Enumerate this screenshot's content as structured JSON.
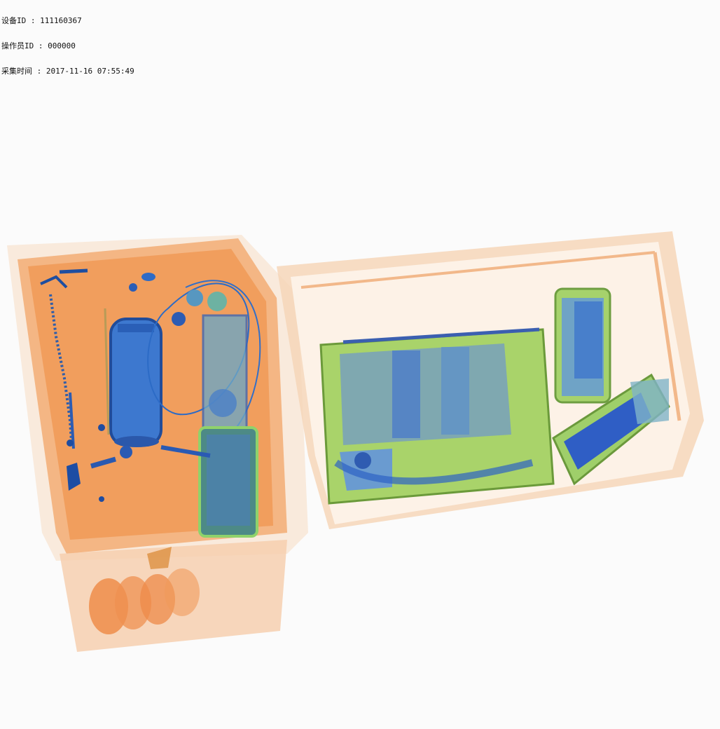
{
  "scanner": {
    "overlay": [
      {
        "label": "设备ID",
        "sep": " : ",
        "value": "111160367"
      },
      {
        "label": "操作员ID",
        "sep": " : ",
        "value": "000000"
      },
      {
        "label": "采集时间",
        "sep": " : ",
        "value": "2017-11-16 07:55:49"
      }
    ]
  },
  "colors": {
    "background": "#fbfbfb",
    "organic": "#f08a3c",
    "mixed": "#9ccc5a",
    "metal": "#2f6fd8",
    "dense": "#1a3f9e",
    "tray": "#f7d9bf"
  }
}
